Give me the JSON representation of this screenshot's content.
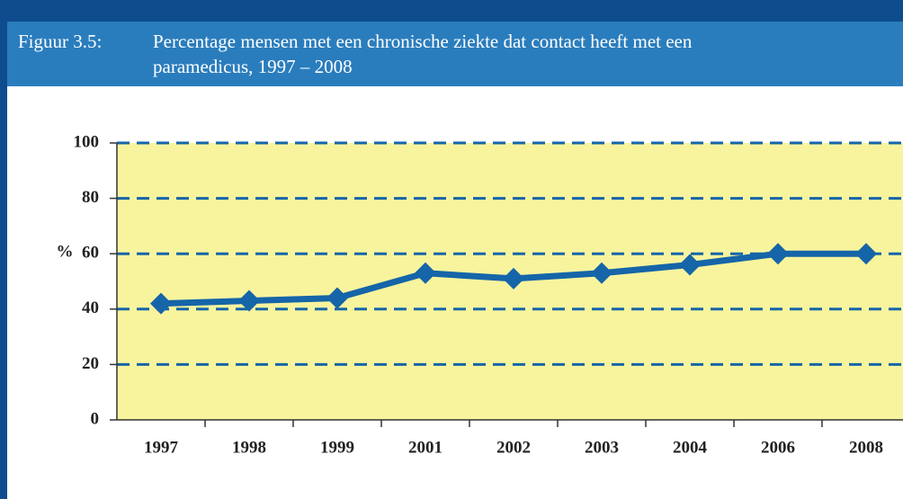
{
  "chart_data": {
    "type": "line",
    "figure_label": "Figuur 3.5:",
    "title": "Percentage mensen met een chronische ziekte dat contact heeft met een paramedicus, 1997 – 2008",
    "y_label": "%",
    "categories": [
      "1997",
      "1998",
      "1999",
      "2001",
      "2002",
      "2003",
      "2004",
      "2006",
      "2008"
    ],
    "values": [
      42,
      43,
      44,
      53,
      51,
      53,
      56,
      60,
      60
    ],
    "color": "#1565a8",
    "ylim": [
      0,
      100
    ],
    "yticks": [
      0,
      20,
      40,
      60,
      80,
      100
    ],
    "grid": true
  }
}
